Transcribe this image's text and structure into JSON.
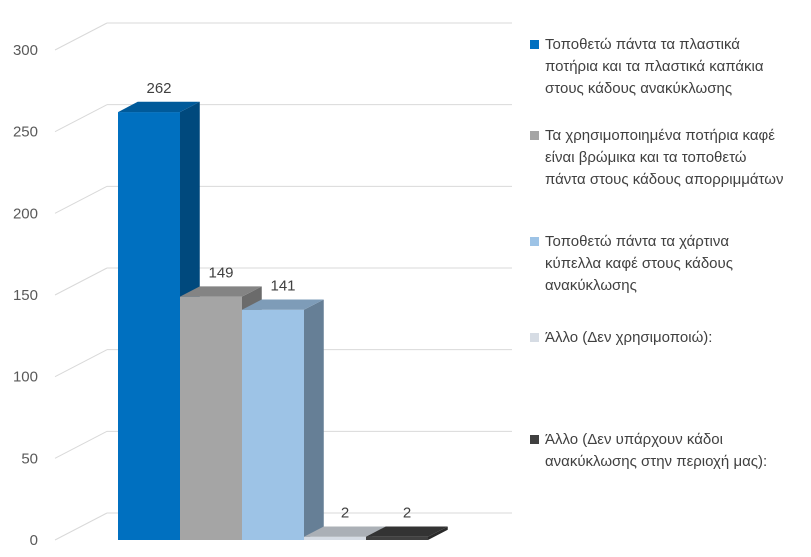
{
  "chart_data": {
    "type": "bar",
    "style": "3d-column",
    "title": "",
    "xlabel": "",
    "ylabel": "",
    "ylim": [
      0,
      300
    ],
    "yticks": [
      0,
      50,
      100,
      150,
      200,
      250,
      300
    ],
    "grid": true,
    "legend_position": "right",
    "series": [
      {
        "name": "Τοποθετώ πάντα τα πλαστικά\nποτήρια και τα πλαστικά καπάκια\nστους κάδους ανακύκλωσης",
        "value": 262,
        "color": "#0070C0"
      },
      {
        "name": "Τα χρησιμοποιημένα ποτήρια καφέ\nείναι βρώμικα και τα τοποθετώ\nπάντα στους κάδους απορριμμάτων",
        "value": 149,
        "color": "#A5A5A5"
      },
      {
        "name": "Τοποθετώ πάντα τα χάρτινα\nκύπελλα καφέ στους κάδους\nανακύκλωσης",
        "value": 141,
        "color": "#9DC3E6"
      },
      {
        "name": "Άλλο (Δεν χρησιμοποιώ):",
        "value": 2,
        "color": "#D6DCE4"
      },
      {
        "name": "Άλλο (Δεν υπάρχουν κάδοι\nανακύκλωσης στην περιοχή μας):",
        "value": 2,
        "color": "#404040"
      }
    ]
  }
}
